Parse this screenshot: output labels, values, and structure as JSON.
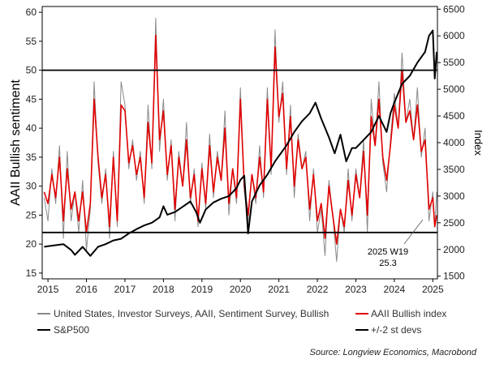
{
  "chart_data": {
    "type": "line",
    "ylabel_left": "AAII Bullish sentiment",
    "ylabel_right": "Index",
    "ylim_left": [
      14,
      61
    ],
    "ylim_right": [
      1450,
      6550
    ],
    "yticks_left": [
      "15",
      "20",
      "25",
      "30",
      "35",
      "40",
      "45",
      "50",
      "55",
      "60"
    ],
    "yticks_right": [
      "1500",
      "2000",
      "2500",
      "3000",
      "3500",
      "4000",
      "4500",
      "5000",
      "5500",
      "6000",
      "6500"
    ],
    "xticks": [
      "2015",
      "2016",
      "2017",
      "2018",
      "2019",
      "2020",
      "2021",
      "2022",
      "2023",
      "2024",
      "2025"
    ],
    "xlim": [
      2014.85,
      2025.12
    ],
    "hlines": [
      50,
      22
    ],
    "series": [
      {
        "name": "United States, Investor Surveys, AAII, Sentiment Survey, Bullish",
        "axis": "left",
        "color": "#8a8a8a",
        "x": [
          2014.9,
          2015.0,
          2015.1,
          2015.2,
          2015.3,
          2015.4,
          2015.5,
          2015.6,
          2015.7,
          2015.8,
          2015.9,
          2016.0,
          2016.1,
          2016.2,
          2016.3,
          2016.4,
          2016.5,
          2016.6,
          2016.7,
          2016.8,
          2016.9,
          2017.0,
          2017.1,
          2017.2,
          2017.3,
          2017.4,
          2017.5,
          2017.6,
          2017.7,
          2017.8,
          2017.9,
          2018.0,
          2018.1,
          2018.2,
          2018.3,
          2018.4,
          2018.5,
          2018.6,
          2018.7,
          2018.8,
          2018.9,
          2019.0,
          2019.1,
          2019.2,
          2019.3,
          2019.4,
          2019.5,
          2019.6,
          2019.7,
          2019.8,
          2019.9,
          2020.0,
          2020.1,
          2020.2,
          2020.3,
          2020.4,
          2020.5,
          2020.6,
          2020.7,
          2020.8,
          2020.9,
          2021.0,
          2021.1,
          2021.2,
          2021.3,
          2021.4,
          2021.5,
          2021.6,
          2021.7,
          2021.8,
          2021.9,
          2022.0,
          2022.1,
          2022.2,
          2022.3,
          2022.4,
          2022.5,
          2022.6,
          2022.7,
          2022.8,
          2022.9,
          2023.0,
          2023.1,
          2023.2,
          2023.3,
          2023.4,
          2023.5,
          2023.6,
          2023.7,
          2023.8,
          2023.9,
          2024.0,
          2024.1,
          2024.2,
          2024.3,
          2024.4,
          2024.5,
          2024.6,
          2024.7,
          2024.8,
          2024.9,
          2025.0,
          2025.05,
          2025.1
        ],
        "values": [
          28,
          24,
          33,
          27,
          37,
          21,
          36,
          24,
          29,
          22,
          31,
          19,
          26,
          48,
          34,
          27,
          33,
          21,
          36,
          23,
          48,
          44,
          33,
          38,
          31,
          36,
          27,
          44,
          33,
          59,
          36,
          45,
          31,
          38,
          24,
          36,
          30,
          41,
          27,
          33,
          23,
          34,
          26,
          39,
          28,
          36,
          31,
          43,
          25,
          33,
          27,
          47,
          29,
          24,
          32,
          27,
          37,
          28,
          47,
          32,
          57,
          41,
          48,
          32,
          44,
          28,
          39,
          33,
          36,
          24,
          33,
          22,
          26,
          18,
          31,
          25,
          17,
          26,
          22,
          33,
          24,
          33,
          28,
          38,
          22,
          45,
          37,
          48,
          34,
          29,
          38,
          46,
          40,
          53,
          41,
          45,
          38,
          47,
          35,
          40,
          24,
          29,
          23,
          29
        ]
      },
      {
        "name": "AAII Bullish index",
        "axis": "left",
        "color": "#e00000",
        "x": [
          2014.9,
          2015.0,
          2015.1,
          2015.2,
          2015.3,
          2015.4,
          2015.5,
          2015.6,
          2015.7,
          2015.8,
          2015.9,
          2016.0,
          2016.1,
          2016.2,
          2016.3,
          2016.4,
          2016.5,
          2016.6,
          2016.7,
          2016.8,
          2016.9,
          2017.0,
          2017.1,
          2017.2,
          2017.3,
          2017.4,
          2017.5,
          2017.6,
          2017.7,
          2017.8,
          2017.9,
          2018.0,
          2018.1,
          2018.2,
          2018.3,
          2018.4,
          2018.5,
          2018.6,
          2018.7,
          2018.8,
          2018.9,
          2019.0,
          2019.1,
          2019.2,
          2019.3,
          2019.4,
          2019.5,
          2019.6,
          2019.7,
          2019.8,
          2019.9,
          2020.0,
          2020.1,
          2020.2,
          2020.3,
          2020.4,
          2020.5,
          2020.6,
          2020.7,
          2020.8,
          2020.9,
          2021.0,
          2021.1,
          2021.2,
          2021.3,
          2021.4,
          2021.5,
          2021.6,
          2021.7,
          2021.8,
          2021.9,
          2022.0,
          2022.1,
          2022.2,
          2022.3,
          2022.4,
          2022.5,
          2022.6,
          2022.7,
          2022.8,
          2022.9,
          2023.0,
          2023.1,
          2023.2,
          2023.3,
          2023.4,
          2023.5,
          2023.6,
          2023.7,
          2023.8,
          2023.9,
          2024.0,
          2024.1,
          2024.2,
          2024.3,
          2024.4,
          2024.5,
          2024.6,
          2024.7,
          2024.8,
          2024.9,
          2025.0,
          2025.05,
          2025.1
        ],
        "values": [
          29,
          27,
          32,
          28,
          35,
          24,
          33,
          26,
          29,
          24,
          29,
          22,
          27,
          45,
          35,
          28,
          32,
          23,
          35,
          24,
          44,
          43,
          34,
          37,
          32,
          35,
          28,
          41,
          34,
          56,
          38,
          43,
          32,
          37,
          26,
          35,
          30,
          38,
          28,
          32,
          24,
          33,
          27,
          37,
          29,
          35,
          31,
          40,
          27,
          33,
          28,
          45,
          30,
          25,
          32,
          28,
          35,
          29,
          45,
          33,
          54,
          42,
          46,
          33,
          42,
          30,
          38,
          33,
          35,
          26,
          32,
          24,
          27,
          21,
          30,
          25,
          20,
          26,
          23,
          31,
          25,
          32,
          28,
          36,
          25,
          42,
          37,
          45,
          35,
          31,
          37,
          44,
          40,
          50,
          41,
          43,
          38,
          44,
          36,
          38,
          26,
          28,
          23,
          25
        ]
      },
      {
        "name": "S&P500",
        "axis": "right",
        "color": "#000000",
        "x": [
          2014.9,
          2015.0,
          2015.2,
          2015.4,
          2015.6,
          2015.7,
          2015.9,
          2016.1,
          2016.3,
          2016.5,
          2016.7,
          2016.9,
          2017.1,
          2017.3,
          2017.5,
          2017.7,
          2017.9,
          2018.0,
          2018.1,
          2018.3,
          2018.5,
          2018.7,
          2018.85,
          2018.95,
          2019.1,
          2019.3,
          2019.5,
          2019.7,
          2019.9,
          2020.0,
          2020.1,
          2020.2,
          2020.3,
          2020.5,
          2020.7,
          2020.9,
          2021.0,
          2021.2,
          2021.4,
          2021.6,
          2021.8,
          2021.95,
          2022.1,
          2022.3,
          2022.45,
          2022.6,
          2022.75,
          2022.9,
          2023.0,
          2023.2,
          2023.4,
          2023.6,
          2023.8,
          2023.9,
          2024.0,
          2024.2,
          2024.4,
          2024.6,
          2024.8,
          2024.9,
          2025.0,
          2025.05,
          2025.1
        ],
        "values": [
          2050,
          2060,
          2080,
          2100,
          1990,
          1900,
          2050,
          1880,
          2050,
          2100,
          2170,
          2200,
          2300,
          2380,
          2450,
          2500,
          2600,
          2810,
          2650,
          2700,
          2800,
          2900,
          2700,
          2500,
          2750,
          2880,
          2950,
          3000,
          3150,
          3300,
          3380,
          2300,
          2900,
          3200,
          3400,
          3650,
          3750,
          3950,
          4200,
          4400,
          4550,
          4750,
          4450,
          4100,
          3800,
          4150,
          3650,
          3900,
          3900,
          4050,
          4200,
          4500,
          4200,
          4550,
          4750,
          5100,
          5250,
          5500,
          5700,
          6000,
          6100,
          5200,
          5700
        ]
      },
      {
        "name": "+/-2 st devs",
        "axis": "left",
        "color": "#000000"
      }
    ],
    "annotation": {
      "text1": "2025 W19",
      "text2": "25.3",
      "x": 2025.05,
      "y": 25.3
    },
    "source": "Source: Longview Economics, Macrobond"
  }
}
